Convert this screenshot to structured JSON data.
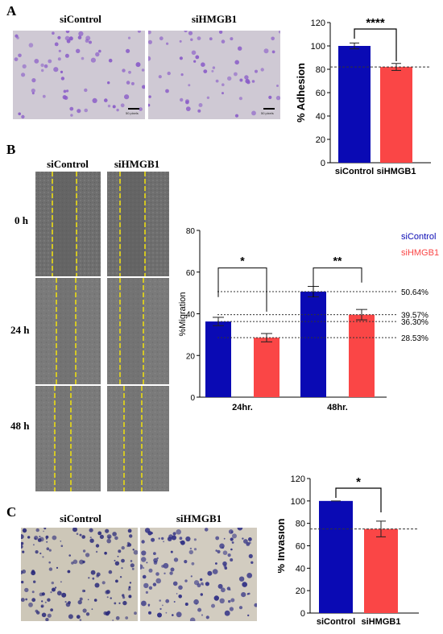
{
  "panels": {
    "A": {
      "letter": "A",
      "images": [
        {
          "label": "siControl",
          "scale": "50 pixels"
        },
        {
          "label": "siHMGB1",
          "scale": "50 pixels"
        }
      ]
    },
    "B": {
      "letter": "B",
      "images": [
        {
          "label": "siControl"
        },
        {
          "label": "siHMGB1"
        }
      ],
      "times": [
        "0 h",
        "24 h",
        "48 h"
      ]
    },
    "C": {
      "letter": "C",
      "images": [
        {
          "label": "siControl"
        },
        {
          "label": "siHMGB1"
        }
      ]
    }
  },
  "colors": {
    "siControl": "#0A0AB4",
    "siHMGB1": "#FA4646",
    "gap_line": "#F2E20C"
  },
  "chart_data": [
    {
      "id": "adhesion",
      "type": "bar",
      "categories": [
        "siControl",
        "siHMGB1"
      ],
      "values": [
        100,
        82
      ],
      "errors": [
        2.5,
        3
      ],
      "colors": [
        "#0A0AB4",
        "#FA4646"
      ],
      "ylabel": "% Adhesion",
      "ylim": [
        0,
        120
      ],
      "yticks": [
        0,
        20,
        40,
        60,
        80,
        100,
        120
      ],
      "reference_line": 82,
      "significance": [
        {
          "from": 0,
          "to": 1,
          "label": "****"
        }
      ]
    },
    {
      "id": "migration",
      "type": "bar",
      "categories": [
        "24hr.",
        "48hr."
      ],
      "series": [
        {
          "name": "siControl",
          "values": [
            36.3,
            50.64
          ],
          "errors": [
            2,
            2.5
          ]
        },
        {
          "name": "siHMGB1",
          "values": [
            28.53,
            39.57
          ],
          "errors": [
            2,
            2.5
          ]
        }
      ],
      "ylabel": "%Migration",
      "ylim": [
        0,
        80
      ],
      "yticks": [
        0,
        20,
        40,
        60,
        80
      ],
      "reference_lines": [
        {
          "value": 50.64,
          "label": "50.64%"
        },
        {
          "value": 39.57,
          "label": "39.57%"
        },
        {
          "value": 36.3,
          "label": "36.30%"
        },
        {
          "value": 28.53,
          "label": "28.53%"
        }
      ],
      "significance": [
        {
          "category": 0,
          "label": "*"
        },
        {
          "category": 1,
          "label": "**"
        }
      ],
      "legend": "top-right"
    },
    {
      "id": "invasion",
      "type": "bar",
      "categories": [
        "siControl",
        "siHMGB1"
      ],
      "values": [
        100,
        75
      ],
      "errors": [
        0,
        7
      ],
      "colors": [
        "#0A0AB4",
        "#FA4646"
      ],
      "ylabel": "% Invasion",
      "ylim": [
        0,
        120
      ],
      "yticks": [
        0,
        20,
        40,
        60,
        80,
        100,
        120
      ],
      "reference_line": 75,
      "significance": [
        {
          "from": 0,
          "to": 1,
          "label": "*"
        }
      ]
    }
  ]
}
